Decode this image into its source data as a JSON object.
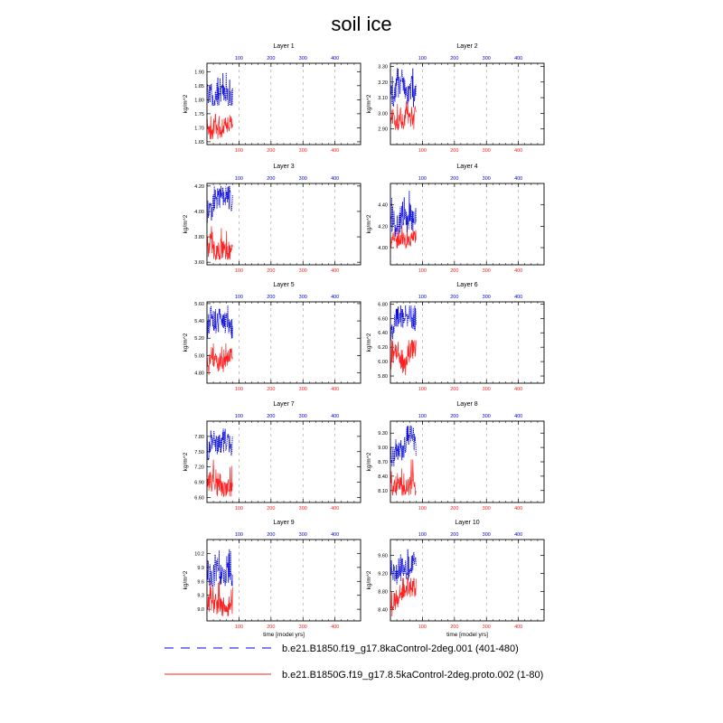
{
  "title": "soil ice",
  "ylabel": "kg/m^2",
  "xlabel": "time [model yrs]",
  "colors": {
    "series_a": "#0000dd",
    "series_b": "#ff2020",
    "grid": "#999999"
  },
  "chart_data": {
    "type": "line",
    "title": "soil ice",
    "xlabel": "time [model yrs]",
    "ylabel": "kg/m^2",
    "xlim": [
      0,
      480
    ],
    "bottom_axis_ticks": [
      100,
      200,
      300,
      400
    ],
    "top_axis_ticks": [
      100,
      200,
      300,
      400
    ],
    "grid": "vertical dashed at 100, 200, 300, 400",
    "legend": "bottom",
    "series": [
      {
        "name": "b.e21.B1850.f19_g17.8kaControl-2deg.001 (401-480)",
        "style": "dashed",
        "color": "blue",
        "years": [
          1,
          80
        ]
      },
      {
        "name": "b.e21.B1850G.f19_g17.8.5kaControl-2deg.proto.002 (1-80)",
        "style": "solid",
        "color": "red",
        "years": [
          1,
          80
        ]
      }
    ],
    "panels": [
      {
        "title": "Layer 1",
        "ylim": [
          1.64,
          1.93
        ],
        "yticks": [
          "1.65",
          "1.70",
          "1.75",
          "1.80",
          "1.85",
          "1.90"
        ],
        "blue_range": [
          1.78,
          1.92
        ],
        "red_range": [
          1.66,
          1.78
        ]
      },
      {
        "title": "Layer 2",
        "ylim": [
          2.8,
          3.32
        ],
        "yticks": [
          "2.90",
          "3.00",
          "3.10",
          "3.20",
          "3.30"
        ],
        "blue_range": [
          3.04,
          3.3
        ],
        "red_range": [
          2.84,
          3.08
        ]
      },
      {
        "title": "Layer 3",
        "ylim": [
          3.58,
          4.22
        ],
        "yticks": [
          "3.60",
          "3.80",
          "4.00",
          "4.20"
        ],
        "blue_range": [
          3.9,
          4.2
        ],
        "red_range": [
          3.62,
          3.92
        ]
      },
      {
        "title": "Layer 4",
        "ylim": [
          3.84,
          4.6
        ],
        "yticks": [
          "4.00",
          "4.20",
          "4.40"
        ],
        "blue_range": [
          4.1,
          4.55
        ],
        "red_range": [
          3.92,
          4.22
        ]
      },
      {
        "title": "Layer 5",
        "ylim": [
          4.68,
          5.62
        ],
        "yticks": [
          "4.80",
          "5.00",
          "5.20",
          "5.40",
          "5.60"
        ],
        "blue_range": [
          5.1,
          5.58
        ],
        "red_range": [
          4.76,
          5.14
        ]
      },
      {
        "title": "Layer 6",
        "ylim": [
          5.7,
          6.83
        ],
        "yticks": [
          "5.80",
          "6.00",
          "6.20",
          "6.40",
          "6.60",
          "6.80"
        ],
        "blue_range": [
          6.2,
          6.78
        ],
        "red_range": [
          5.8,
          6.3
        ]
      },
      {
        "title": "Layer 7",
        "ylim": [
          6.5,
          8.1
        ],
        "yticks": [
          "6.60",
          "6.90",
          "7.20",
          "7.50",
          "7.80"
        ],
        "blue_range": [
          7.1,
          7.95
        ],
        "red_range": [
          6.62,
          7.35
        ]
      },
      {
        "title": "Layer 8",
        "ylim": [
          7.85,
          9.55
        ],
        "yticks": [
          "8.10",
          "8.40",
          "8.70",
          "9.00",
          "9.30"
        ],
        "blue_range": [
          8.6,
          9.45
        ],
        "red_range": [
          8.0,
          8.75
        ]
      },
      {
        "title": "Layer 9",
        "ylim": [
          8.75,
          10.5
        ],
        "yticks": [
          "9.0",
          "9.3",
          "9.6",
          "9.9",
          "10.2"
        ],
        "blue_range": [
          9.5,
          10.4
        ],
        "red_range": [
          8.85,
          9.6
        ]
      },
      {
        "title": "Layer 10",
        "ylim": [
          8.15,
          9.95
        ],
        "yticks": [
          "8.40",
          "8.80",
          "9.20",
          "9.60"
        ],
        "blue_range": [
          8.9,
          9.85
        ],
        "red_range": [
          8.25,
          9.1
        ]
      }
    ]
  }
}
